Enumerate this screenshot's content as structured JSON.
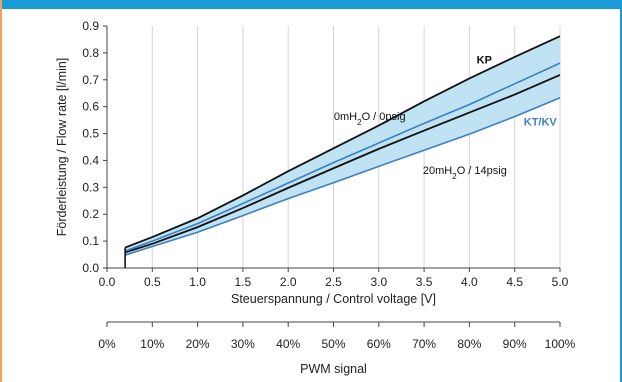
{
  "colors": {
    "frame_top": "#1a9ad6",
    "frame_left": "#f4a15a",
    "fill": "#bfe3f2",
    "kp": "#111111",
    "ktkv": "#3d7fc1"
  },
  "chart_data": [
    {
      "type": "line",
      "xlabel": "Steuerspannung / Control voltage [V]",
      "ylabel": "Förderleistung / Flow rate [l/min]",
      "xlim": [
        0.0,
        5.0
      ],
      "ylim": [
        0.0,
        0.9
      ],
      "x_ticks": [
        "0.0",
        "0.5",
        "1.0",
        "1.5",
        "2.0",
        "2.5",
        "3.0",
        "3.5",
        "4.0",
        "4.5",
        "5.0"
      ],
      "y_ticks": [
        "0.0",
        "0.1",
        "0.2",
        "0.3",
        "0.4",
        "0.5",
        "0.6",
        "0.7",
        "0.8",
        "0.9"
      ],
      "grid": "vertical",
      "series": [
        {
          "name": "KP",
          "group": "KP",
          "color": "#111111",
          "x": [
            0.2,
            0.5,
            1.0,
            1.5,
            2.0,
            2.5,
            3.0,
            3.5,
            4.0,
            4.5,
            5.0
          ],
          "y": [
            0.076,
            0.115,
            0.185,
            0.27,
            0.36,
            0.445,
            0.53,
            0.62,
            0.705,
            0.785,
            0.862
          ]
        },
        {
          "name": "KP",
          "group": "KP",
          "color": "#111111",
          "x": [
            0.2,
            0.5,
            1.0,
            1.5,
            2.0,
            2.5,
            3.0,
            3.5,
            4.0,
            4.5,
            5.0
          ],
          "y": [
            0.058,
            0.09,
            0.152,
            0.223,
            0.298,
            0.371,
            0.443,
            0.511,
            0.578,
            0.645,
            0.718
          ]
        },
        {
          "name": "KT/KV",
          "group": "KT/KV",
          "color": "#3d7fc1",
          "x": [
            0.2,
            0.5,
            1.0,
            1.5,
            2.0,
            2.5,
            3.0,
            3.5,
            4.0,
            4.5,
            5.0
          ],
          "y": [
            0.063,
            0.1,
            0.165,
            0.24,
            0.316,
            0.392,
            0.465,
            0.538,
            0.608,
            0.685,
            0.762
          ]
        },
        {
          "name": "KT/KV",
          "group": "KT/KV",
          "color": "#3d7fc1",
          "x": [
            0.2,
            0.5,
            1.0,
            1.5,
            2.0,
            2.5,
            3.0,
            3.5,
            4.0,
            4.5,
            5.0
          ],
          "y": [
            0.048,
            0.08,
            0.133,
            0.195,
            0.258,
            0.317,
            0.378,
            0.438,
            0.498,
            0.563,
            0.633
          ]
        }
      ],
      "annotations": [
        {
          "text_pre": "0mH",
          "sub": "2",
          "text_post": "O / 0psig",
          "x": 2.9,
          "y": 0.55
        },
        {
          "text_pre": "20mH",
          "sub": "2",
          "text_post": "O / 14psig",
          "x": 3.95,
          "y": 0.35
        }
      ],
      "series_labels": [
        {
          "text": "KP",
          "x": 4.08,
          "y": 0.76,
          "color": "#111111"
        },
        {
          "text": "KT/KV",
          "x": 4.6,
          "y": 0.53,
          "color": "#3d7fc1"
        }
      ]
    },
    {
      "type": "axis",
      "xlabel": "PWM signal",
      "xlim": [
        0,
        100
      ],
      "x_ticks": [
        "0%",
        "10%",
        "20%",
        "30%",
        "40%",
        "50%",
        "60%",
        "70%",
        "80%",
        "90%",
        "100%"
      ]
    }
  ]
}
